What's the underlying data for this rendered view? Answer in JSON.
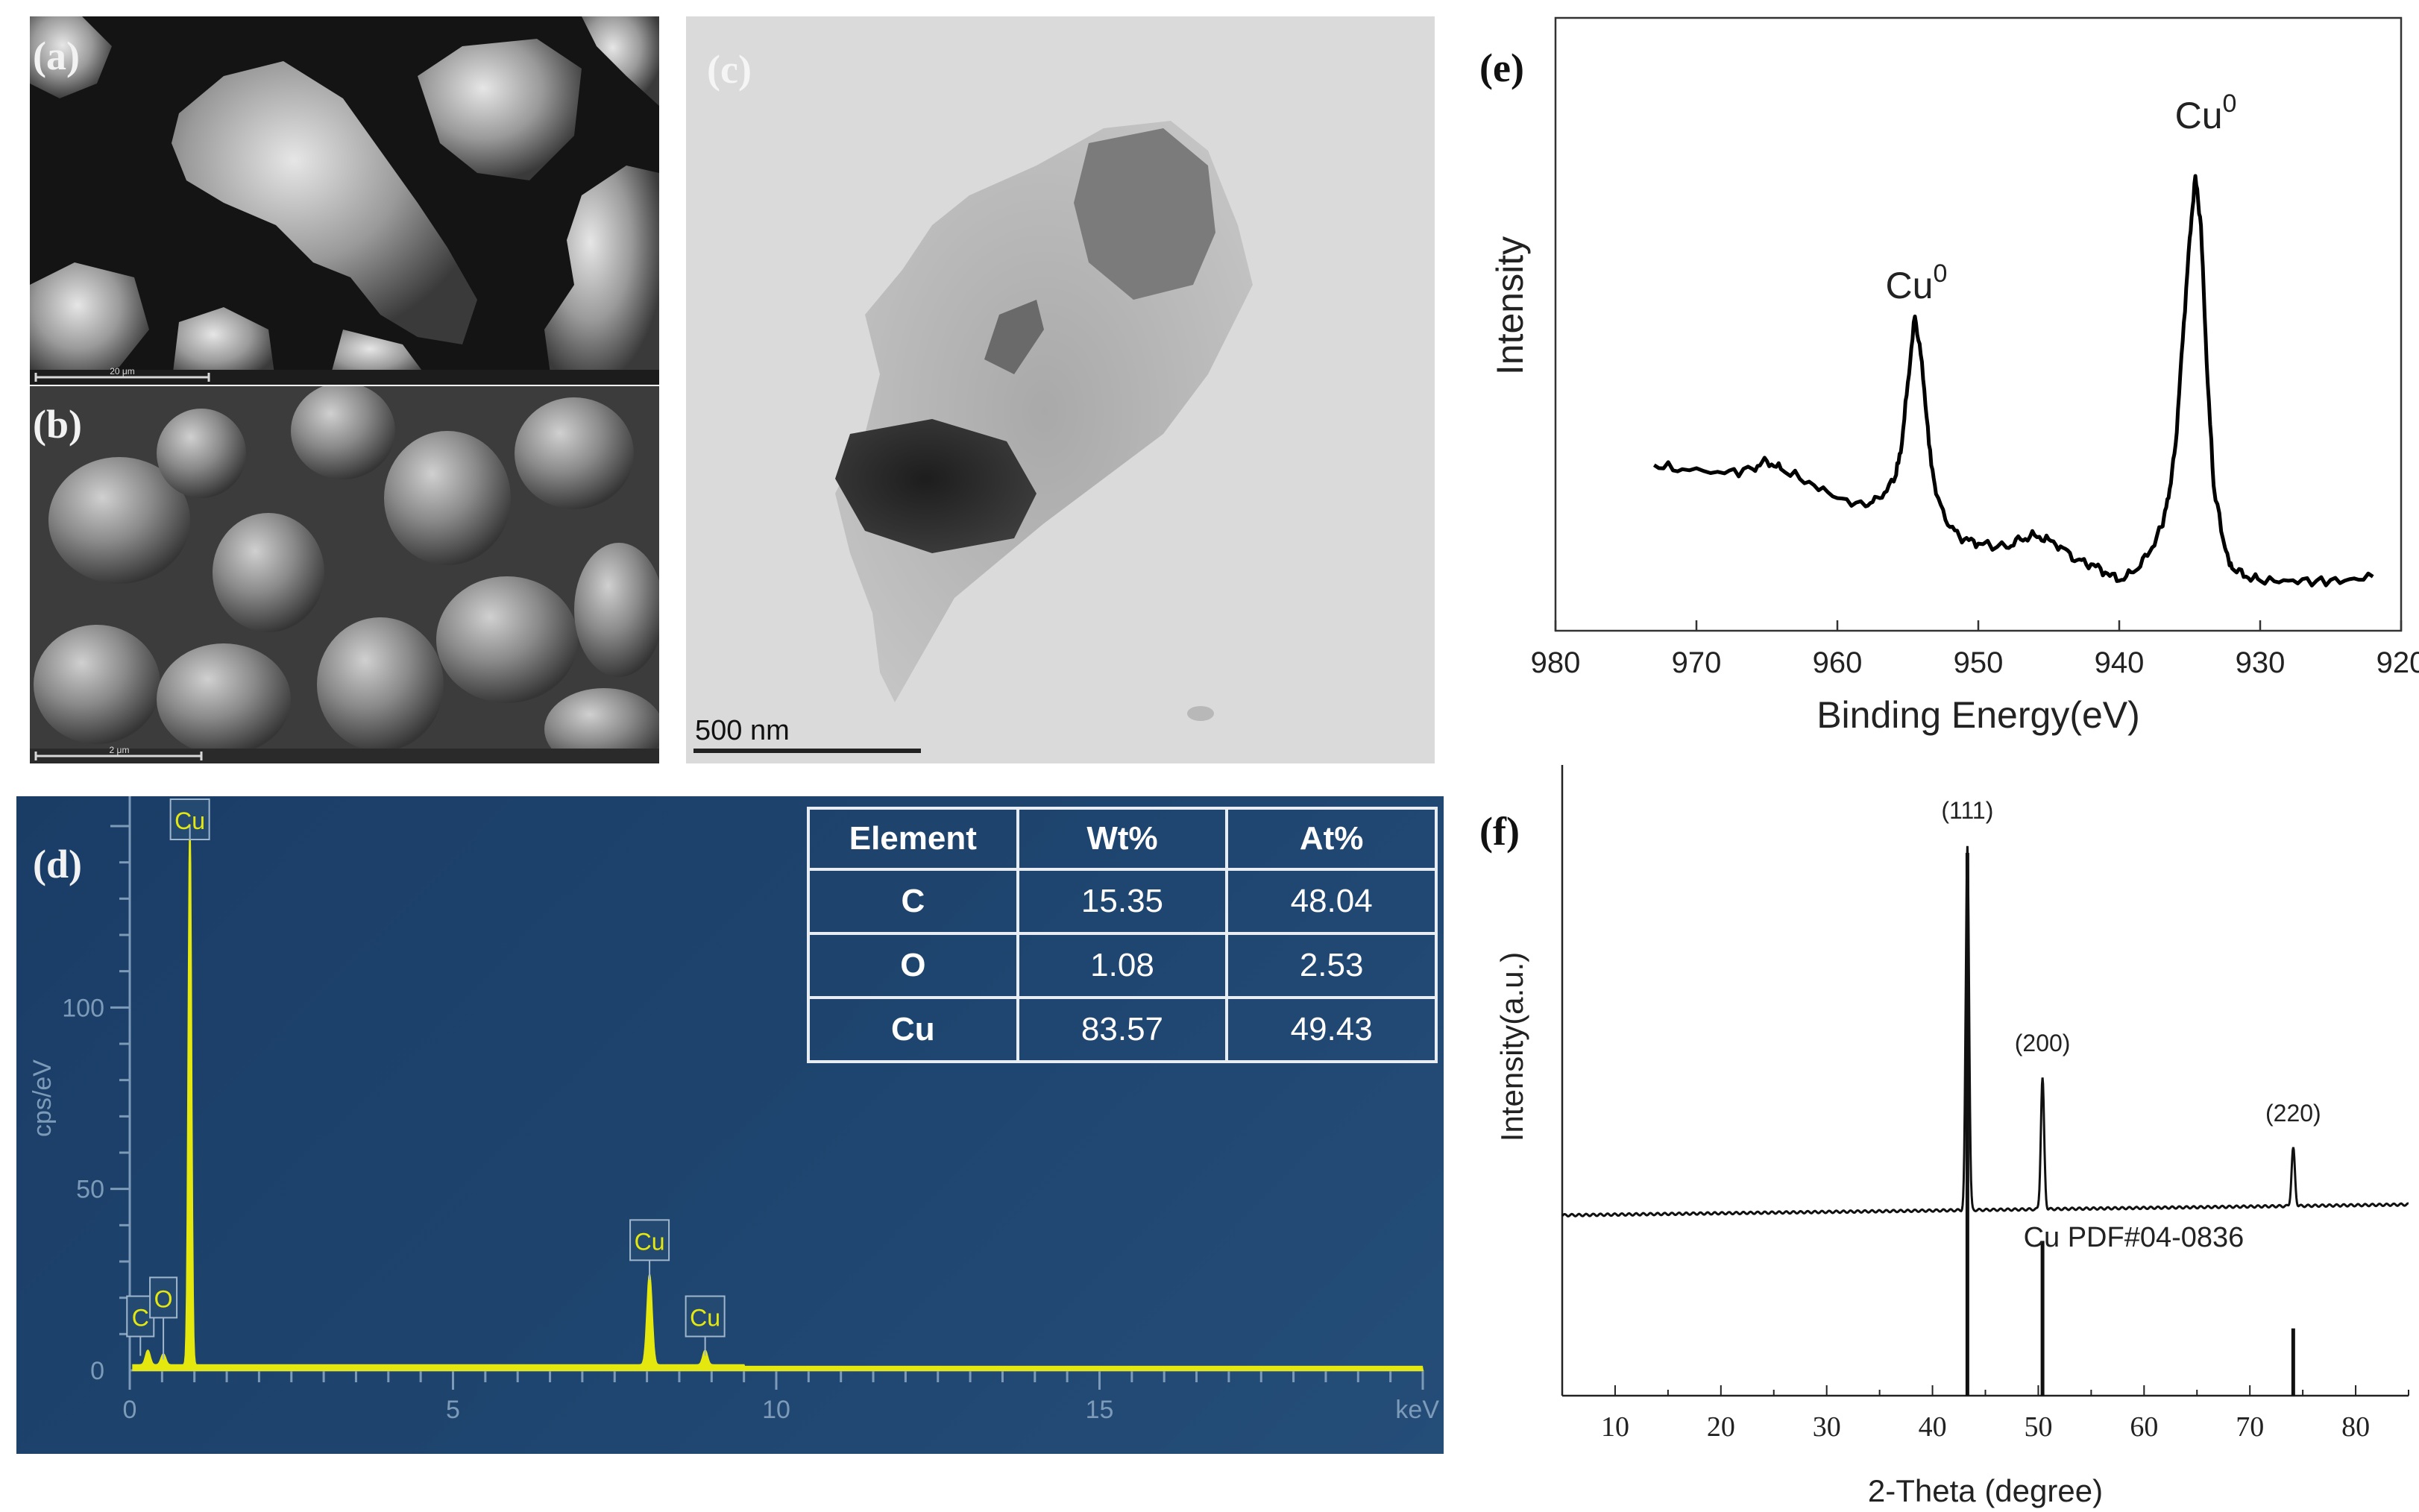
{
  "panels": {
    "a": {
      "label": "(a)",
      "scale": "20 μm"
    },
    "b": {
      "label": "(b)",
      "scale": "2 μm"
    },
    "c": {
      "label": "(c)",
      "scale": "500 nm"
    },
    "d": {
      "label": "(d)"
    },
    "e": {
      "label": "(e)"
    },
    "f": {
      "label": "(f)"
    }
  },
  "eds_table": {
    "headers": [
      "Element",
      "Wt%",
      "At%"
    ],
    "rows": [
      {
        "element": "C",
        "wt": "15.35",
        "at": "48.04"
      },
      {
        "element": "O",
        "wt": "1.08",
        "at": "2.53"
      },
      {
        "element": "Cu",
        "wt": "83.57",
        "at": "49.43"
      }
    ]
  },
  "chart_data": [
    {
      "id": "d",
      "type": "line",
      "ylabel": "cps/eV",
      "xunit": "keV",
      "xlim": [
        0,
        20
      ],
      "ylim": [
        0,
        150
      ],
      "xticks": [
        0,
        5,
        10,
        15
      ],
      "yticks": [
        0,
        50,
        100
      ],
      "peaks": [
        {
          "label": "C",
          "x": 0.28,
          "y": 4
        },
        {
          "label": "O",
          "x": 0.52,
          "y": 3
        },
        {
          "label": "Cu",
          "x": 0.93,
          "y": 150
        },
        {
          "label": "Cu",
          "x": 8.04,
          "y": 25
        },
        {
          "label": "Cu",
          "x": 8.9,
          "y": 4
        }
      ],
      "colors": {
        "background": "#1c3f66",
        "line": "#e5e80f",
        "tag_fill": "#244a72",
        "axis": "#7d9bb8"
      }
    },
    {
      "id": "e",
      "type": "line",
      "xlabel": "Binding Energy(eV)",
      "ylabel": "Intensity",
      "xlim": [
        980,
        920
      ],
      "xticks": [
        980,
        970,
        960,
        950,
        940,
        930,
        920
      ],
      "annotations": [
        {
          "text": "Cu",
          "sup": "0",
          "x": 954.5
        },
        {
          "text": "Cu",
          "sup": "0",
          "x": 934.6
        }
      ],
      "series": [
        {
          "x": [
            973,
            971,
            968,
            966,
            965,
            964,
            962,
            960,
            958,
            957,
            956,
            955.5,
            955,
            954.5,
            954,
            953.5,
            953,
            952,
            951,
            950,
            948,
            947,
            946,
            945,
            944,
            943,
            942,
            941,
            940,
            939,
            938,
            937,
            936.5,
            936,
            935.5,
            935,
            934.6,
            934.2,
            933.8,
            933.3,
            932.5,
            932,
            931,
            930,
            928,
            926,
            924,
            922
          ],
          "y": [
            0.3,
            0.29,
            0.28,
            0.29,
            0.31,
            0.29,
            0.26,
            0.22,
            0.2,
            0.22,
            0.26,
            0.33,
            0.5,
            0.66,
            0.55,
            0.35,
            0.23,
            0.15,
            0.12,
            0.11,
            0.1,
            0.12,
            0.13,
            0.12,
            0.1,
            0.07,
            0.06,
            0.04,
            0.02,
            0.04,
            0.08,
            0.15,
            0.22,
            0.35,
            0.6,
            0.85,
            1.0,
            0.88,
            0.55,
            0.25,
            0.1,
            0.05,
            0.03,
            0.02,
            0.02,
            0.02,
            0.02,
            0.03
          ]
        }
      ]
    },
    {
      "id": "f",
      "type": "line",
      "xlabel": "2-Theta (degree)",
      "ylabel": "Intensity(a.u.)",
      "xlim": [
        5,
        85
      ],
      "xticks": [
        10,
        20,
        30,
        40,
        50,
        60,
        70,
        80
      ],
      "reference_label": "Cu  PDF#04-0836",
      "peaks": [
        {
          "label": "(111)",
          "x": 43.3,
          "height": 1.0
        },
        {
          "label": "(200)",
          "x": 50.4,
          "height": 0.36
        },
        {
          "label": "(220)",
          "x": 74.1,
          "height": 0.16
        }
      ],
      "reference_sticks": [
        {
          "x": 43.3,
          "height": 1.0
        },
        {
          "x": 50.4,
          "height": 0.46
        },
        {
          "x": 74.1,
          "height": 0.2
        }
      ]
    }
  ]
}
